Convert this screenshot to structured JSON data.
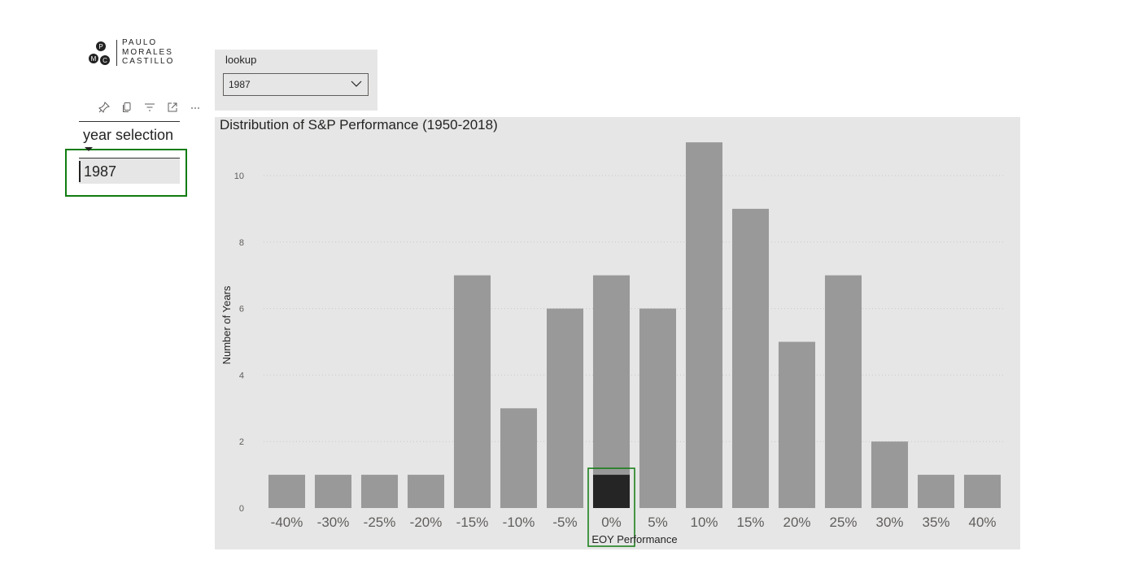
{
  "logo": {
    "monogram": [
      "P",
      "M",
      "C"
    ],
    "lines": [
      "PAULO",
      "MORALES",
      "CASTILLO"
    ]
  },
  "visual_header": {
    "icons": [
      "pin-icon",
      "copy-icon",
      "filter-icon",
      "focus-mode-icon",
      "more-options-icon"
    ]
  },
  "year_selection": {
    "title": "year selection",
    "value": "1987"
  },
  "lookup": {
    "label": "lookup",
    "selected": "1987"
  },
  "colors": {
    "bar": "#999999",
    "bar_highlight": "#252525",
    "selection_border": "#107c10",
    "panel_bg": "#e6e6e6"
  },
  "chart_data": {
    "type": "bar",
    "title": "Distribution of S&P Performance (1950-2018)",
    "xlabel": "EOY Performance",
    "ylabel": "Number of Years",
    "categories": [
      "-40%",
      "-30%",
      "-25%",
      "-20%",
      "-15%",
      "-10%",
      "-5%",
      "0%",
      "5%",
      "10%",
      "15%",
      "20%",
      "25%",
      "30%",
      "35%",
      "40%"
    ],
    "values": [
      1,
      1,
      1,
      1,
      7,
      3,
      6,
      7,
      6,
      11,
      9,
      5,
      7,
      2,
      1,
      1
    ],
    "highlight": {
      "category": "0%",
      "value": 1
    },
    "yticks": [
      0,
      2,
      4,
      6,
      8,
      10
    ],
    "ylim": [
      0,
      11
    ],
    "grid": true
  }
}
